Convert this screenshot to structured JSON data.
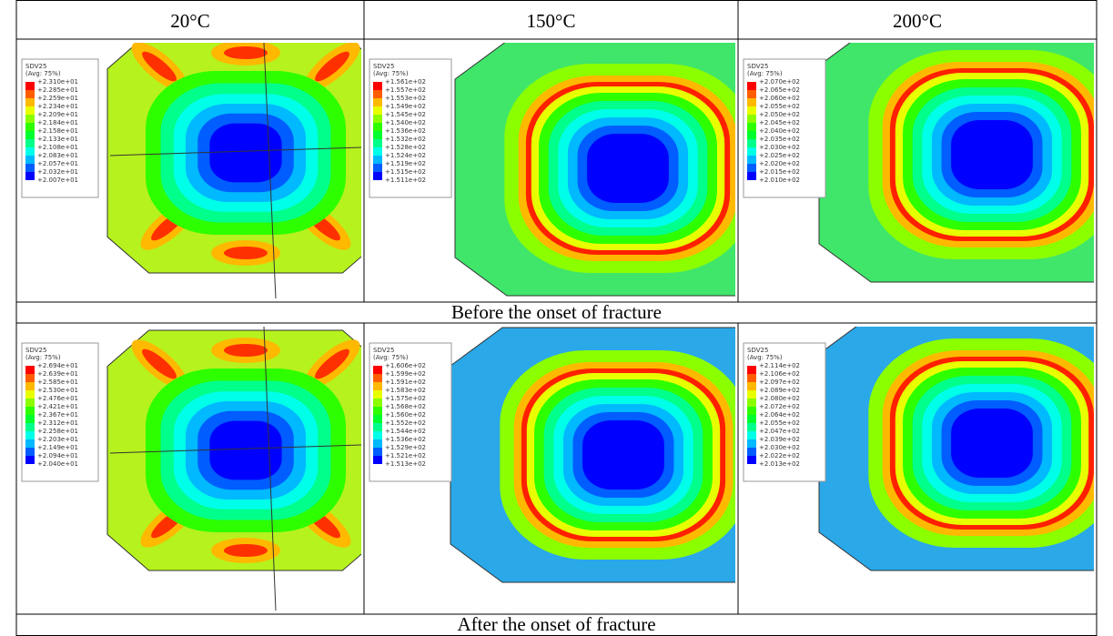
{
  "table": {
    "header": [
      "20°C",
      "150°C",
      "200°C"
    ],
    "rows": [
      {
        "caption": "Before the onset of fracture",
        "panels": [
          {
            "legend_title": "SDV25",
            "legend_subtitle": "(Avg: 75%)",
            "legend_values": [
              "+2.310e+01",
              "+2.285e+01",
              "+2.259e+01",
              "+2.234e+01",
              "+2.209e+01",
              "+2.184e+01",
              "+2.158e+01",
              "+2.133e+01",
              "+2.108e+01",
              "+2.083e+01",
              "+2.057e+01",
              "+2.032e+01",
              "+2.007e+01"
            ]
          },
          {
            "legend_title": "SDV25",
            "legend_subtitle": "(Avg: 75%)",
            "legend_values": [
              "+1.561e+02",
              "+1.557e+02",
              "+1.553e+02",
              "+1.549e+02",
              "+1.545e+02",
              "+1.540e+02",
              "+1.536e+02",
              "+1.532e+02",
              "+1.528e+02",
              "+1.524e+02",
              "+1.519e+02",
              "+1.515e+02",
              "+1.511e+02"
            ]
          },
          {
            "legend_title": "SDV25",
            "legend_subtitle": "(Avg: 75%)",
            "legend_values": [
              "+2.070e+02",
              "+2.065e+02",
              "+2.060e+02",
              "+2.055e+02",
              "+2.050e+02",
              "+2.045e+02",
              "+2.040e+02",
              "+2.035e+02",
              "+2.030e+02",
              "+2.025e+02",
              "+2.020e+02",
              "+2.015e+02",
              "+2.010e+02"
            ]
          }
        ]
      },
      {
        "caption": "After the onset of fracture",
        "panels": [
          {
            "legend_title": "SDV25",
            "legend_subtitle": "(Avg: 75%)",
            "legend_values": [
              "+2.694e+01",
              "+2.639e+01",
              "+2.585e+01",
              "+2.530e+01",
              "+2.476e+01",
              "+2.421e+01",
              "+2.367e+01",
              "+2.312e+01",
              "+2.258e+01",
              "+2.203e+01",
              "+2.149e+01",
              "+2.094e+01",
              "+2.040e+01"
            ]
          },
          {
            "legend_title": "SDV25",
            "legend_subtitle": "(Avg: 75%)",
            "legend_values": [
              "+1.606e+02",
              "+1.599e+02",
              "+1.591e+02",
              "+1.583e+02",
              "+1.575e+02",
              "+1.568e+02",
              "+1.560e+02",
              "+1.552e+02",
              "+1.544e+02",
              "+1.536e+02",
              "+1.529e+02",
              "+1.521e+02",
              "+1.513e+02"
            ]
          },
          {
            "legend_title": "SDV25",
            "legend_subtitle": "(Avg: 75%)",
            "legend_values": [
              "+2.114e+02",
              "+2.106e+02",
              "+2.097e+02",
              "+2.089e+02",
              "+2.080e+02",
              "+2.072e+02",
              "+2.064e+02",
              "+2.055e+02",
              "+2.047e+02",
              "+2.039e+02",
              "+2.030e+02",
              "+2.022e+02",
              "+2.013e+02"
            ]
          }
        ]
      }
    ]
  }
}
